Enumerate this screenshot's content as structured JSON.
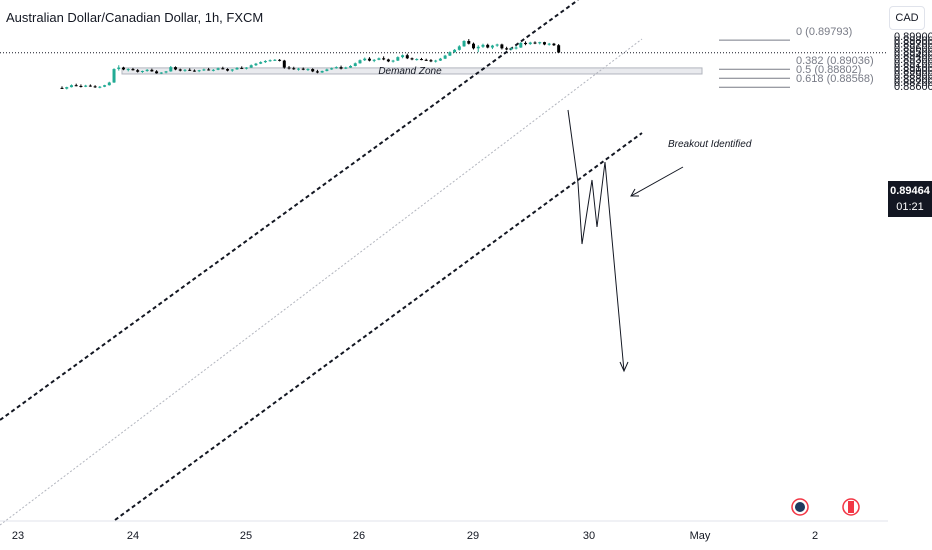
{
  "header": {
    "title": "Australian Dollar/Canadian Dollar, 1h, FXCM",
    "currency": "CAD"
  },
  "price_label": {
    "price": "0.89464",
    "countdown": "01:21"
  },
  "annotations": {
    "breakout": "Breakout Identified",
    "demand_zone": "Demand Zone"
  },
  "fib_levels": [
    {
      "label": "0 (0.89793)",
      "price": 0.89793
    },
    {
      "label": "0.382 (0.89036)",
      "price": 0.89036
    },
    {
      "label": "0.5 (0.88802)",
      "price": 0.88802
    },
    {
      "label": "0.618 (0.88568)",
      "price": 0.88568
    }
  ],
  "chart_data": {
    "type": "candlestick",
    "title": "Australian Dollar/Canadian Dollar, 1h, FXCM",
    "x_ticks": [
      "23",
      "24",
      "25",
      "26",
      "29",
      "30",
      "May",
      "2"
    ],
    "y_ticks": [
      "0.89900",
      "0.89800",
      "0.89700",
      "0.89600",
      "0.89500",
      "0.89400",
      "0.89300",
      "0.89200",
      "0.89100",
      "0.89000",
      "0.88900",
      "0.88800",
      "0.88700",
      "0.88600"
    ],
    "ylim": [
      0.8853,
      0.8993
    ],
    "current_price": 0.89464,
    "demand_zone": [
      0.88912,
      0.8907
    ],
    "colors": {
      "up": "#22ab94",
      "down": "#000000"
    },
    "ohlc": [
      [
        0.8855,
        0.8859,
        0.8852,
        0.8853
      ],
      [
        0.8853,
        0.8858,
        0.8851,
        0.8857
      ],
      [
        0.8857,
        0.8864,
        0.8856,
        0.8862
      ],
      [
        0.8862,
        0.8866,
        0.8859,
        0.886
      ],
      [
        0.886,
        0.8864,
        0.8856,
        0.8858
      ],
      [
        0.8858,
        0.8863,
        0.8857,
        0.8861
      ],
      [
        0.8861,
        0.8864,
        0.8858,
        0.8859
      ],
      [
        0.8859,
        0.8862,
        0.8855,
        0.8857
      ],
      [
        0.8857,
        0.886,
        0.8854,
        0.8858
      ],
      [
        0.8858,
        0.8863,
        0.8857,
        0.8862
      ],
      [
        0.8862,
        0.8871,
        0.8861,
        0.8869
      ],
      [
        0.8869,
        0.8906,
        0.8868,
        0.8904
      ],
      [
        0.8904,
        0.8914,
        0.89,
        0.8908
      ],
      [
        0.8908,
        0.891,
        0.8901,
        0.8903
      ],
      [
        0.8903,
        0.8906,
        0.8898,
        0.8904
      ],
      [
        0.8904,
        0.8907,
        0.89,
        0.8901
      ],
      [
        0.8901,
        0.8904,
        0.8895,
        0.8897
      ],
      [
        0.8897,
        0.89,
        0.8894,
        0.8899
      ],
      [
        0.8899,
        0.8904,
        0.8897,
        0.8902
      ],
      [
        0.8902,
        0.8905,
        0.8897,
        0.8898
      ],
      [
        0.8898,
        0.8901,
        0.8892,
        0.8893
      ],
      [
        0.8893,
        0.8896,
        0.8891,
        0.8895
      ],
      [
        0.8895,
        0.8899,
        0.8893,
        0.8898
      ],
      [
        0.8898,
        0.8912,
        0.8897,
        0.8909
      ],
      [
        0.8909,
        0.8911,
        0.8901,
        0.8903
      ],
      [
        0.8903,
        0.8905,
        0.8898,
        0.89
      ],
      [
        0.89,
        0.8904,
        0.8897,
        0.8902
      ],
      [
        0.8902,
        0.8906,
        0.8899,
        0.89
      ],
      [
        0.89,
        0.8903,
        0.8897,
        0.8899
      ],
      [
        0.8899,
        0.8902,
        0.8896,
        0.8901
      ],
      [
        0.8901,
        0.8905,
        0.8899,
        0.8903
      ],
      [
        0.8903,
        0.8907,
        0.89,
        0.8901
      ],
      [
        0.8901,
        0.8904,
        0.8898,
        0.8902
      ],
      [
        0.8902,
        0.8908,
        0.8901,
        0.8906
      ],
      [
        0.8906,
        0.891,
        0.8903,
        0.8904
      ],
      [
        0.8904,
        0.8906,
        0.8898,
        0.89
      ],
      [
        0.89,
        0.8904,
        0.8897,
        0.8903
      ],
      [
        0.8903,
        0.8909,
        0.8902,
        0.8907
      ],
      [
        0.8907,
        0.8911,
        0.8904,
        0.8905
      ],
      [
        0.8905,
        0.8909,
        0.8903,
        0.8908
      ],
      [
        0.8908,
        0.8916,
        0.8907,
        0.8914
      ],
      [
        0.8914,
        0.892,
        0.8912,
        0.8918
      ],
      [
        0.8918,
        0.8924,
        0.8917,
        0.8922
      ],
      [
        0.8922,
        0.8927,
        0.892,
        0.8925
      ],
      [
        0.8925,
        0.8929,
        0.8923,
        0.8927
      ],
      [
        0.8927,
        0.893,
        0.8925,
        0.8928
      ],
      [
        0.8928,
        0.893,
        0.8924,
        0.8926
      ],
      [
        0.8926,
        0.8928,
        0.8905,
        0.8908
      ],
      [
        0.8908,
        0.8912,
        0.8903,
        0.8906
      ],
      [
        0.8906,
        0.891,
        0.8902,
        0.8904
      ],
      [
        0.8904,
        0.8907,
        0.89,
        0.8905
      ],
      [
        0.8905,
        0.8908,
        0.8901,
        0.8903
      ],
      [
        0.8903,
        0.8906,
        0.8899,
        0.8904
      ],
      [
        0.8904,
        0.8906,
        0.8896,
        0.8898
      ],
      [
        0.8898,
        0.8902,
        0.8893,
        0.8895
      ],
      [
        0.8895,
        0.89,
        0.8894,
        0.8899
      ],
      [
        0.8899,
        0.8905,
        0.8898,
        0.8903
      ],
      [
        0.8903,
        0.8908,
        0.8902,
        0.8906
      ],
      [
        0.8906,
        0.8911,
        0.8905,
        0.8909
      ],
      [
        0.8909,
        0.8913,
        0.8903,
        0.8905
      ],
      [
        0.8905,
        0.891,
        0.8904,
        0.8908
      ],
      [
        0.8908,
        0.8914,
        0.8907,
        0.8912
      ],
      [
        0.8912,
        0.8921,
        0.8911,
        0.8919
      ],
      [
        0.8919,
        0.8929,
        0.8918,
        0.8927
      ],
      [
        0.8927,
        0.8934,
        0.8925,
        0.8931
      ],
      [
        0.8931,
        0.8935,
        0.8924,
        0.8926
      ],
      [
        0.8926,
        0.893,
        0.8922,
        0.8928
      ],
      [
        0.8928,
        0.8934,
        0.8927,
        0.8932
      ],
      [
        0.8932,
        0.8937,
        0.8927,
        0.8929
      ],
      [
        0.8929,
        0.8931,
        0.8922,
        0.8924
      ],
      [
        0.8924,
        0.8928,
        0.8921,
        0.8926
      ],
      [
        0.8926,
        0.8937,
        0.8925,
        0.8935
      ],
      [
        0.8935,
        0.8942,
        0.8932,
        0.894
      ],
      [
        0.894,
        0.8944,
        0.893,
        0.8932
      ],
      [
        0.8932,
        0.8934,
        0.8927,
        0.8929
      ],
      [
        0.8929,
        0.8932,
        0.8926,
        0.893
      ],
      [
        0.893,
        0.8933,
        0.8927,
        0.8928
      ],
      [
        0.8928,
        0.8931,
        0.8925,
        0.8927
      ],
      [
        0.8927,
        0.893,
        0.8922,
        0.8924
      ],
      [
        0.8924,
        0.8928,
        0.8921,
        0.8926
      ],
      [
        0.8926,
        0.8933,
        0.8925,
        0.8931
      ],
      [
        0.8931,
        0.8941,
        0.893,
        0.8939
      ],
      [
        0.8939,
        0.895,
        0.8938,
        0.8948
      ],
      [
        0.8948,
        0.8956,
        0.8946,
        0.8954
      ],
      [
        0.8954,
        0.8966,
        0.8952,
        0.8963
      ],
      [
        0.8963,
        0.8979,
        0.8962,
        0.8977
      ],
      [
        0.8977,
        0.8982,
        0.8968,
        0.897
      ],
      [
        0.897,
        0.8973,
        0.8955,
        0.8958
      ],
      [
        0.8958,
        0.8966,
        0.8948,
        0.8962
      ],
      [
        0.8962,
        0.897,
        0.8959,
        0.8967
      ],
      [
        0.8967,
        0.897,
        0.8958,
        0.896
      ],
      [
        0.896,
        0.8967,
        0.8956,
        0.8965
      ],
      [
        0.8965,
        0.897,
        0.8962,
        0.8968
      ],
      [
        0.8968,
        0.897,
        0.8955,
        0.8958
      ],
      [
        0.8958,
        0.8962,
        0.8953,
        0.8955
      ],
      [
        0.8955,
        0.896,
        0.8953,
        0.8958
      ],
      [
        0.8958,
        0.8964,
        0.8955,
        0.896
      ],
      [
        0.896,
        0.8974,
        0.8959,
        0.8972
      ],
      [
        0.8972,
        0.8976,
        0.8966,
        0.8969
      ],
      [
        0.8969,
        0.8975,
        0.8967,
        0.8973
      ],
      [
        0.8973,
        0.8976,
        0.8969,
        0.8971
      ],
      [
        0.8971,
        0.8975,
        0.8968,
        0.8974
      ],
      [
        0.8974,
        0.8975,
        0.8966,
        0.8968
      ],
      [
        0.8968,
        0.8972,
        0.8965,
        0.897
      ],
      [
        0.897,
        0.8972,
        0.8964,
        0.8966
      ],
      [
        0.8966,
        0.8969,
        0.8946,
        0.8947
      ]
    ]
  }
}
